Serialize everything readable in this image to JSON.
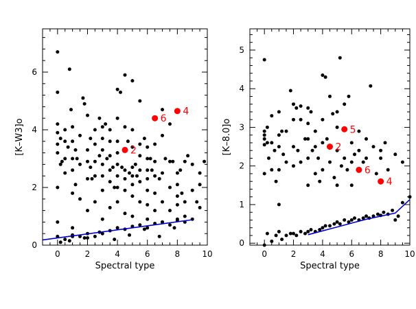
{
  "chart_data": [
    {
      "type": "scatter",
      "xlabel": "Spectral type",
      "ylabel": "[K–W3]o",
      "xlim": [
        -1,
        10
      ],
      "ylim": [
        0,
        7.5
      ],
      "xticks": [
        "0",
        "2",
        "4",
        "6",
        "8",
        "10"
      ],
      "yticks": [
        "0",
        "2",
        "4",
        "6"
      ],
      "grid": false,
      "highlighted": [
        {
          "label": "2",
          "x": 4.5,
          "y": 3.3
        },
        {
          "label": "6",
          "x": 6.5,
          "y": 4.4
        },
        {
          "label": "4",
          "x": 8.0,
          "y": 4.65
        }
      ],
      "fit_line": {
        "color": "#0000cc",
        "x": [
          -1,
          9
        ],
        "y": [
          0.18,
          0.88
        ]
      },
      "points": {
        "x": [
          0,
          0,
          0,
          0,
          0,
          0,
          0,
          0,
          0.2,
          0.2,
          0.3,
          0.5,
          0.5,
          0.5,
          0.5,
          0.7,
          0.8,
          0.9,
          1,
          1,
          1,
          1,
          1,
          1,
          1,
          1.2,
          1.2,
          1.3,
          1.5,
          1.5,
          1.5,
          1.7,
          1.8,
          2,
          2,
          2,
          2,
          2,
          2,
          2.2,
          2.2,
          2.3,
          2.5,
          2.5,
          2.5,
          2.5,
          2.5,
          2.8,
          2.8,
          3,
          3,
          3,
          3,
          3,
          3,
          3,
          3.2,
          3.3,
          3.5,
          3.5,
          3.5,
          3.5,
          3.5,
          3.5,
          3.7,
          3.8,
          4,
          4,
          4,
          4,
          4,
          4,
          4,
          4,
          4.2,
          4.3,
          4.5,
          4.5,
          4.5,
          4.5,
          4.5,
          4.5,
          4.7,
          4.8,
          5,
          5,
          5,
          5,
          5,
          5,
          5,
          5,
          5.2,
          5.3,
          5.5,
          5.5,
          5.5,
          5.5,
          5.5,
          5.5,
          5.8,
          6,
          6,
          6,
          6,
          6,
          6,
          6,
          6.2,
          6.3,
          6.5,
          6.5,
          6.5,
          6.5,
          6.5,
          6.8,
          7,
          7,
          7,
          7,
          7,
          7.2,
          7.5,
          7.5,
          7.5,
          7.5,
          7.7,
          8,
          8,
          8,
          8,
          8,
          8.2,
          8.3,
          8.5,
          8.5,
          8.5,
          8.7,
          9,
          9,
          9.3,
          9.5,
          9.5,
          9.5,
          9.8,
          0,
          0.5,
          1,
          1.5,
          2,
          2.5,
          3,
          3.5,
          4,
          4.5,
          5,
          5.5,
          6,
          6.5,
          7,
          7.5,
          8,
          8.5,
          9,
          0.2,
          0.8,
          1.8,
          2.8,
          3.8,
          4.8,
          5.8,
          6.8,
          7.8
        ],
        "y": [
          6.7,
          5.3,
          4.2,
          3.9,
          3.5,
          3.2,
          2.0,
          0.8,
          3.7,
          2.8,
          2.9,
          4.0,
          3.6,
          3.0,
          2.5,
          3.4,
          6.1,
          4.7,
          4.1,
          3.6,
          3.0,
          2.6,
          1.8,
          0.6,
          0.3,
          3.3,
          2.1,
          3.0,
          3.8,
          2.8,
          1.6,
          5.1,
          4.9,
          4.5,
          3.3,
          2.9,
          2.3,
          1.2,
          0.4,
          3.7,
          2.7,
          2.3,
          4.0,
          3.5,
          2.9,
          2.4,
          1.5,
          4.4,
          3.1,
          4.1,
          3.7,
          3.3,
          2.8,
          2.4,
          1.9,
          0.9,
          4.2,
          3.0,
          4.0,
          3.6,
          3.1,
          2.6,
          2.2,
          1.3,
          2.7,
          2.0,
          5.4,
          4.4,
          3.6,
          3.2,
          2.8,
          2.4,
          2.0,
          1.5,
          5.3,
          2.7,
          5.9,
          4.1,
          2.6,
          2.3,
          1.9,
          1.1,
          3.6,
          2.5,
          5.7,
          4.0,
          3.4,
          2.7,
          2.4,
          2.1,
          1.7,
          1.0,
          2.8,
          2.4,
          5.0,
          3.5,
          3.1,
          2.6,
          2.2,
          1.5,
          3.7,
          3.4,
          3.0,
          2.6,
          2.3,
          1.9,
          1.4,
          0.9,
          3.0,
          2.6,
          3.5,
          2.9,
          2.4,
          1.8,
          1.2,
          2.3,
          4.7,
          3.8,
          2.5,
          1.5,
          0.8,
          3.0,
          4.2,
          2.9,
          2.0,
          1.2,
          2.9,
          2.5,
          2.1,
          1.7,
          1.4,
          0.9,
          2.6,
          1.8,
          2.9,
          1.5,
          1.0,
          3.1,
          2.8,
          1.9,
          1.5,
          2.5,
          2.1,
          1.3,
          2.9,
          0.3,
          0.2,
          0.35,
          0.3,
          0.25,
          0.3,
          0.4,
          0.5,
          0.6,
          0.55,
          0.65,
          0.7,
          0.6,
          0.75,
          0.8,
          0.7,
          0.85,
          0.8,
          0.9,
          0.1,
          0.15,
          0.25,
          0.45,
          0.2,
          0.35,
          0.55,
          0.3,
          0.6
        ]
      }
    },
    {
      "type": "scatter",
      "xlabel": "Spectral type",
      "ylabel": "[K–8.0]o",
      "xlim": [
        -1,
        10
      ],
      "ylim": [
        -0.05,
        5.55
      ],
      "xticks": [
        "0",
        "2",
        "4",
        "6",
        "8",
        "10"
      ],
      "yticks": [
        "0",
        "1",
        "2",
        "3",
        "4",
        "5"
      ],
      "grid": false,
      "highlighted": [
        {
          "label": "2",
          "x": 4.5,
          "y": 2.5
        },
        {
          "label": "5",
          "x": 5.5,
          "y": 2.95
        },
        {
          "label": "6",
          "x": 6.5,
          "y": 1.9
        },
        {
          "label": "4",
          "x": 8.0,
          "y": 1.6
        }
      ],
      "fit_line": {
        "color": "#0000cc",
        "x": [
          3,
          4,
          5,
          6,
          7,
          8,
          9,
          10
        ],
        "y": [
          0.22,
          0.32,
          0.42,
          0.52,
          0.62,
          0.7,
          0.78,
          1.13
        ]
      },
      "points": {
        "x": [
          0,
          0,
          0,
          0,
          0,
          0,
          0.2,
          0.2,
          0.3,
          0.5,
          0.5,
          0.5,
          0.7,
          0.8,
          1,
          1,
          1,
          1,
          1,
          1.2,
          1.3,
          1.5,
          1.5,
          1.8,
          2,
          2,
          2,
          2,
          2.2,
          2.3,
          2.5,
          2.5,
          2.5,
          2.8,
          3,
          3,
          3,
          3,
          3,
          3.2,
          3.3,
          3.5,
          3.5,
          3.5,
          3.7,
          3.8,
          4,
          4,
          4,
          4,
          4.2,
          4.3,
          4.5,
          4.5,
          4.7,
          4.8,
          5,
          5,
          5,
          5,
          5.2,
          5.3,
          5.5,
          5.5,
          5.7,
          5.8,
          6,
          6,
          6,
          6.2,
          6.5,
          6.5,
          6.8,
          7,
          7,
          7.3,
          7.5,
          7.7,
          8,
          8,
          8.3,
          8.5,
          9,
          9.5,
          0,
          0.2,
          0.5,
          0.8,
          1,
          1.2,
          1.5,
          1.8,
          2,
          2.2,
          2.5,
          2.8,
          3,
          3.2,
          3.5,
          3.8,
          4,
          4.2,
          4.5,
          4.8,
          5,
          5.2,
          5.5,
          5.8,
          6,
          6.2,
          6.5,
          6.8,
          7,
          7.2,
          7.5,
          7.8,
          8,
          8.2,
          8.5,
          8.8,
          9,
          9.2,
          9.5,
          10
        ],
        "y": [
          4.75,
          2.9,
          2.8,
          2.7,
          2.55,
          1.8,
          2.6,
          3.0,
          2.2,
          3.3,
          2.6,
          1.9,
          2.4,
          1.6,
          3.4,
          2.8,
          2.5,
          1.9,
          1.0,
          2.9,
          2.3,
          2.9,
          2.1,
          3.95,
          3.6,
          3.2,
          2.5,
          2.0,
          3.5,
          2.4,
          3.55,
          3.2,
          2.1,
          2.7,
          3.5,
          3.1,
          2.7,
          2.2,
          1.5,
          3.4,
          2.4,
          2.9,
          2.5,
          1.8,
          2.2,
          1.6,
          4.35,
          3.2,
          2.6,
          1.9,
          4.3,
          2.7,
          3.8,
          2.1,
          3.35,
          1.7,
          3.4,
          3.0,
          2.4,
          1.5,
          4.8,
          2.0,
          3.6,
          2.2,
          1.9,
          3.8,
          2.6,
          2.1,
          1.5,
          2.3,
          2.9,
          2.4,
          2.1,
          2.7,
          2.2,
          4.07,
          2.5,
          1.8,
          2.4,
          2.2,
          2.6,
          1.9,
          2.3,
          2.1,
          -0.05,
          0.25,
          0.05,
          0.2,
          0.3,
          0.1,
          0.2,
          0.25,
          0.25,
          0.2,
          0.3,
          0.25,
          0.3,
          0.35,
          0.3,
          0.35,
          0.4,
          0.45,
          0.45,
          0.5,
          0.55,
          0.5,
          0.6,
          0.55,
          0.6,
          0.65,
          0.6,
          0.65,
          0.7,
          0.65,
          0.7,
          0.75,
          0.72,
          0.8,
          0.75,
          0.85,
          0.6,
          0.7,
          1.05,
          1.2
        ]
      }
    }
  ]
}
